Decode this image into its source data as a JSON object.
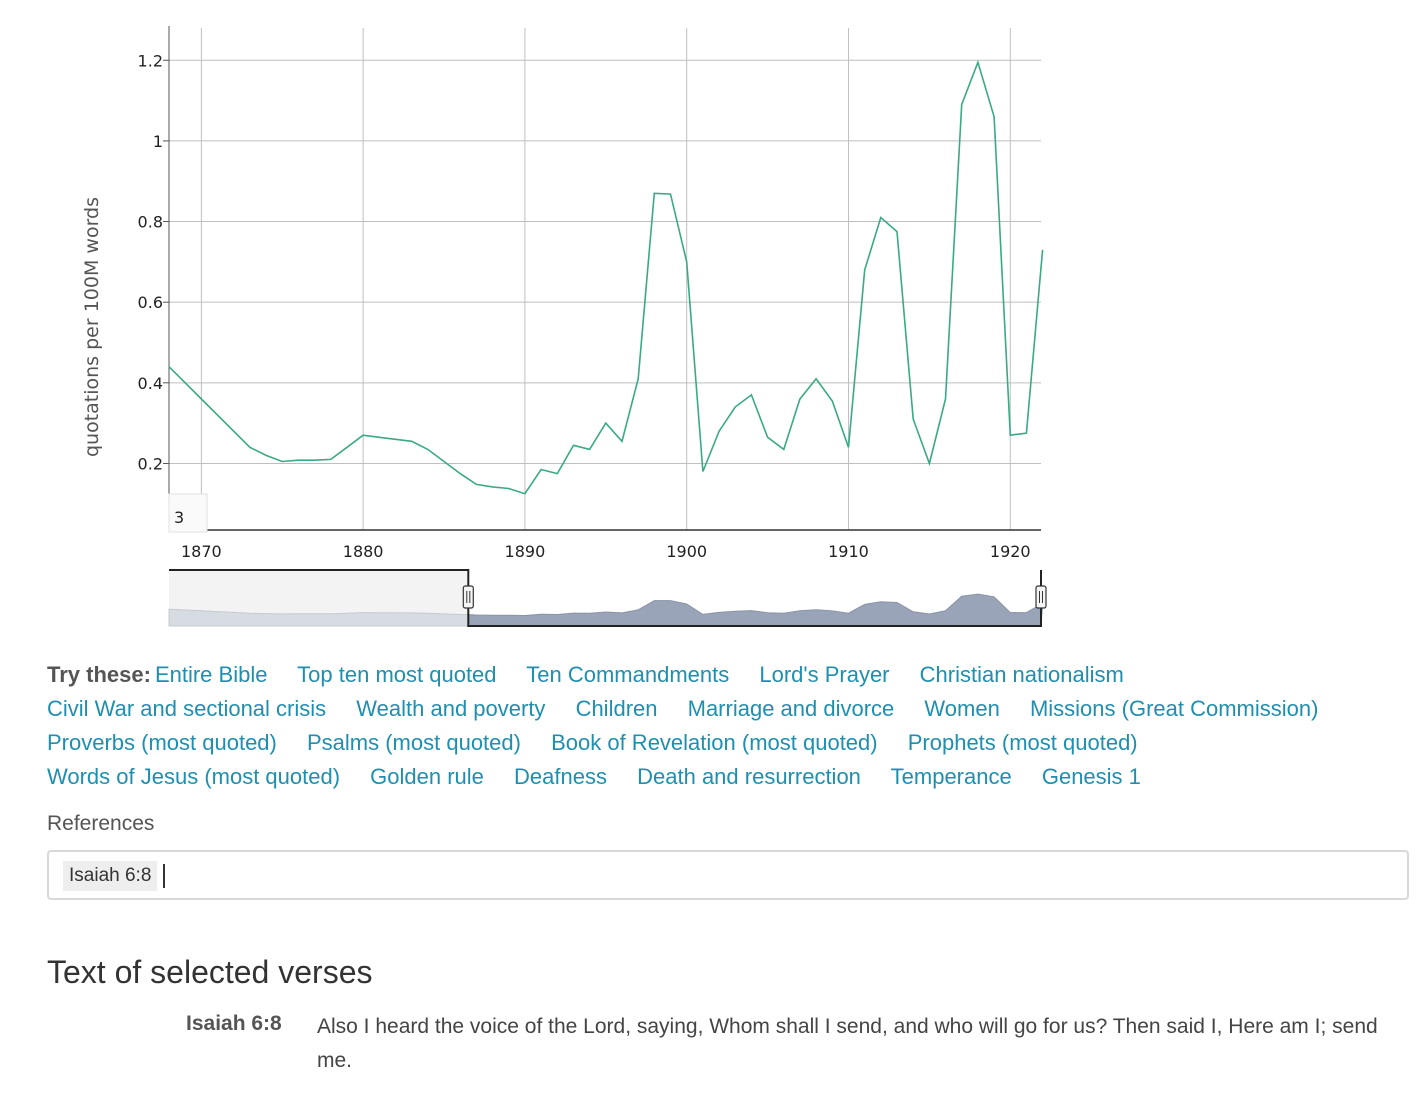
{
  "chart_data": {
    "type": "line",
    "ylabel": "quotations per 100M words",
    "xlabel": "",
    "title": "",
    "xlim": [
      1868,
      1921.9
    ],
    "ylim": [
      0.035,
      1.28
    ],
    "x_ticks": [
      1870,
      1880,
      1890,
      1900,
      1910,
      1920
    ],
    "y_ticks": [
      0.2,
      0.4,
      0.6,
      0.8,
      1,
      1.2
    ],
    "y_tick_labels": [
      "0.2",
      "0.4",
      "0.6",
      "0.8",
      "1",
      "1.2"
    ],
    "grid": true,
    "line_color": "#3aa986",
    "corner_label": "3",
    "series": [
      {
        "x": [
          1868,
          1869,
          1870,
          1871,
          1872,
          1873,
          1874,
          1875,
          1876,
          1877,
          1878,
          1879,
          1880,
          1881,
          1882,
          1883,
          1884,
          1885,
          1886,
          1887,
          1888,
          1889,
          1890,
          1891,
          1892,
          1893,
          1894,
          1895,
          1896,
          1897,
          1898,
          1899,
          1900,
          1901,
          1902,
          1903,
          1904,
          1905,
          1906,
          1907,
          1908,
          1909,
          1910,
          1911,
          1912,
          1913,
          1914,
          1915,
          1916,
          1917,
          1918,
          1919,
          1920,
          1921,
          1922
        ],
        "y": [
          0.44,
          0.4,
          0.36,
          0.32,
          0.28,
          0.24,
          0.22,
          0.205,
          0.208,
          0.208,
          0.21,
          0.24,
          0.27,
          0.265,
          0.26,
          0.255,
          0.235,
          0.205,
          0.175,
          0.148,
          0.142,
          0.138,
          0.125,
          0.185,
          0.175,
          0.245,
          0.235,
          0.3,
          0.255,
          0.41,
          0.87,
          0.868,
          0.7,
          0.18,
          0.28,
          0.34,
          0.37,
          0.265,
          0.235,
          0.36,
          0.41,
          0.355,
          0.24,
          0.68,
          0.81,
          0.775,
          0.31,
          0.2,
          0.36,
          1.09,
          1.195,
          1.06,
          0.27,
          0.275,
          0.73
        ]
      }
    ]
  },
  "range_selector": {
    "selected_from": 1886.5,
    "selected_to": 1921.9,
    "overview_fill": "#9aa4b8",
    "unselected_fill": "#f3f3f3"
  },
  "try_these": {
    "label": "Try these:",
    "links": [
      "Entire Bible",
      "Top ten most quoted",
      "Ten Commandments",
      "Lord's Prayer",
      "Christian nationalism",
      "Civil War and sectional crisis",
      "Wealth and poverty",
      "Children",
      "Marriage and divorce",
      "Women",
      "Missions (Great Commission)",
      "Proverbs (most quoted)",
      "Psalms (most quoted)",
      "Book of Revelation (most quoted)",
      "Prophets (most quoted)",
      "Words of Jesus (most quoted)",
      "Golden rule",
      "Deafness",
      "Death and resurrection",
      "Temperance",
      "Genesis 1"
    ],
    "link_color": "#1f8fb0"
  },
  "references": {
    "label": "References",
    "chips": [
      "Isaiah 6:8"
    ]
  },
  "selected_verses": {
    "title": "Text of selected verses",
    "verses": [
      {
        "ref": "Isaiah 6:8",
        "text": "Also I heard the voice of the Lord, saying, Whom shall I send, and who will go for us? Then said I, Here am I; send me."
      }
    ]
  }
}
